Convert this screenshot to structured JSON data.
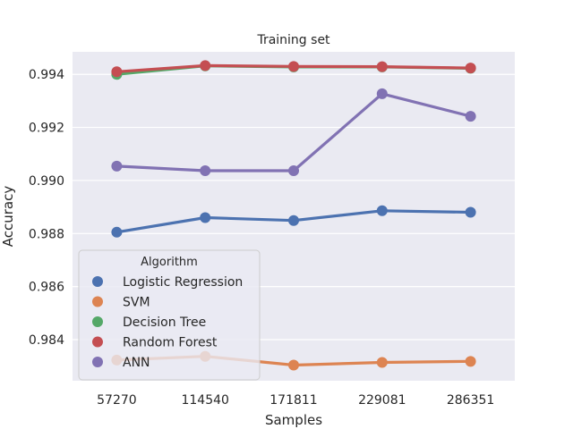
{
  "chart_data": {
    "type": "line",
    "title": "Training set",
    "xlabel": "Samples",
    "ylabel": "Accuracy",
    "categories": [
      "57270",
      "114540",
      "171811",
      "229081",
      "286351"
    ],
    "ylim": [
      0.98245,
      0.99485
    ],
    "yticks": [
      0.984,
      0.986,
      0.988,
      0.99,
      0.992,
      0.994
    ],
    "ytick_labels": [
      "0.984",
      "0.986",
      "0.988",
      "0.990",
      "0.992",
      "0.994"
    ],
    "grid": true,
    "legend": {
      "title": "Algorithm",
      "placement": "lower-left"
    },
    "series": [
      {
        "name": "Logistic Regression",
        "color": "#4c72b0",
        "values": [
          0.98805,
          0.9886,
          0.98849,
          0.98886,
          0.9888
        ]
      },
      {
        "name": "SVM",
        "color": "#dd8452",
        "values": [
          0.98323,
          0.98337,
          0.98304,
          0.98314,
          0.98318
        ]
      },
      {
        "name": "Decision Tree",
        "color": "#55a868",
        "values": [
          0.994,
          0.99432,
          0.99428,
          0.99428,
          0.99423
        ]
      },
      {
        "name": "Random Forest",
        "color": "#c44e52",
        "values": [
          0.9941,
          0.99433,
          0.9943,
          0.99429,
          0.99424
        ]
      },
      {
        "name": "ANN",
        "color": "#8172b3",
        "values": [
          0.99054,
          0.99037,
          0.99037,
          0.99327,
          0.99242
        ]
      }
    ]
  }
}
